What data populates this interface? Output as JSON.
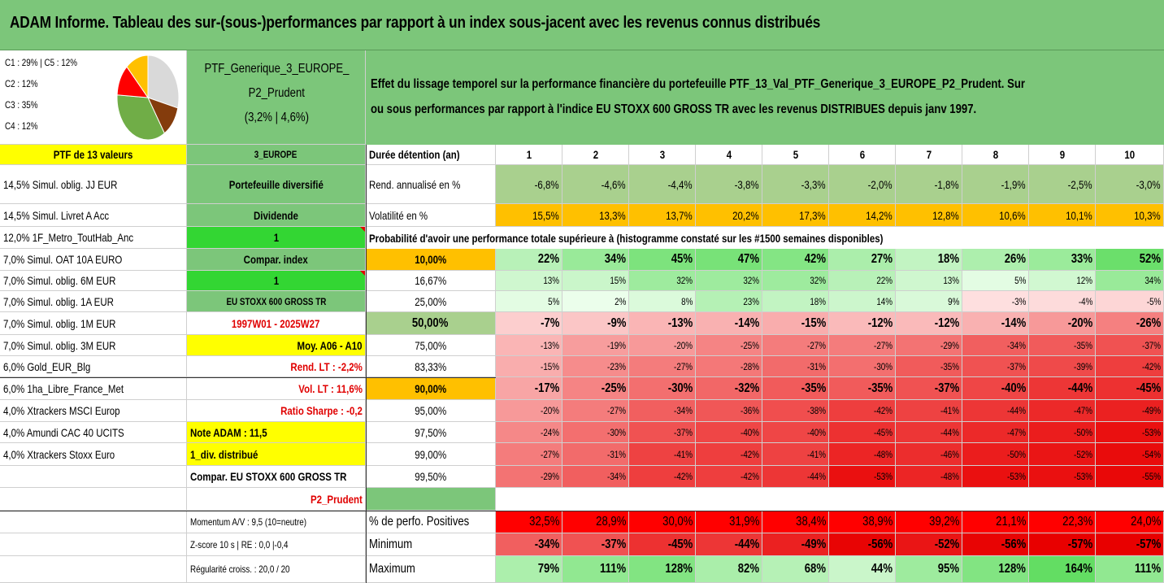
{
  "title": "ADAM Informe. Tableau des sur-(sous-)performances par rapport à un index sous-jacent avec les revenus connus distribués",
  "composition_lines": [
    "C1 : 29% | C5 : 12%",
    "C2 : 12%",
    "C3 : 35%",
    "C4 : 12%"
  ],
  "pie": {
    "slices": [
      {
        "name": "C1",
        "value": 29,
        "color": "#d9d9d9"
      },
      {
        "name": "C2",
        "value": 12,
        "color": "#843c0c"
      },
      {
        "name": "C3",
        "value": 35,
        "color": "#70ad47"
      },
      {
        "name": "C4",
        "value": 12,
        "color": "#ff0000"
      },
      {
        "name": "C5",
        "value": 12,
        "color": "#ffc000"
      }
    ]
  },
  "portfolio": {
    "name_line1": "PTF_Generique_3_EUROPE_",
    "name_line2": "P2_Prudent",
    "name_line3": "(3,2% | 4,6%)"
  },
  "description": {
    "line1": "Effet du lissage temporel sur la performance financière du portefeuille PTF_13_Val_PTF_Generique_3_EUROPE_P2_Prudent. Sur",
    "line2": "ou sous performances par rapport à l'indice EU STOXX 600 GROSS TR avec les revenus DISTRIBUES depuis janv 1997."
  },
  "holdings_header": "PTF de 13 valeurs",
  "holdings": [
    "14,5% Simul. oblig. JJ EUR",
    "14,5% Simul. Livret A Acc",
    "12,0% 1F_Metro_ToutHab_Anc",
    "7,0% Simul. OAT 10A EURO",
    "7,0% Simul. oblig. 6M EUR",
    "7,0% Simul. oblig. 1A EUR",
    "7,0% Simul. oblig. 1M EUR",
    "7,0% Simul. oblig. 3M EUR",
    "6,0% Gold_EUR_Blg",
    "6,0% 1ha_Libre_France_Met",
    "4,0% Xtrackers MSCI Europ",
    "4,0% Amundi CAC 40 UCITS",
    "4,0% Xtrackers Stoxx Euro"
  ],
  "info": {
    "zone": "3_EUROPE",
    "type": "Portefeuille diversifié",
    "dividend_label": "Dividende",
    "dividend_value": "1",
    "compar_label": "Compar. index",
    "compar_value": "1",
    "index_name": "EU STOXX 600 GROSS TR",
    "period": "1997W01 - 2025W27",
    "moy": "Moy. A06 - A10",
    "rend_lt": "Rend. LT : -2,2%",
    "vol_lt": "Vol. LT : 11,6%",
    "sharpe": "Ratio Sharpe : -0,2",
    "note": "Note ADAM : 11,5",
    "div_distrib": "1_div. distribué",
    "compar_full": "Compar. EU STOXX 600 GROSS TR",
    "profile": "P2_Prudent",
    "momentum": "Momentum A/V : 9,5 (10=neutre)",
    "zscore": "Z-score 10 s | RE : 0,0 |-0,4",
    "regularite": "Régularité croiss. : 20,0 / 20"
  },
  "table": {
    "duration_label": "Durée détention (an)",
    "years": [
      "1",
      "2",
      "3",
      "4",
      "5",
      "6",
      "7",
      "8",
      "9",
      "10"
    ],
    "rend_label": "Rend. annualisé en %",
    "rend": [
      "-6,8%",
      "-4,6%",
      "-4,4%",
      "-3,8%",
      "-3,3%",
      "-2,0%",
      "-1,8%",
      "-1,9%",
      "-2,5%",
      "-3,0%"
    ],
    "vol_label": "Volatilité en %",
    "vol": [
      "15,5%",
      "13,3%",
      "13,7%",
      "20,2%",
      "17,3%",
      "14,2%",
      "12,8%",
      "10,6%",
      "10,1%",
      "10,3%"
    ],
    "prob_title": "Probabilité d'avoir une performance totale supérieure à (histogramme constaté sur les #1500 semaines disponibles)",
    "prob_rows": [
      {
        "label": "10,00%",
        "values": [
          "22%",
          "34%",
          "45%",
          "47%",
          "42%",
          "27%",
          "18%",
          "26%",
          "33%",
          "52%"
        ]
      },
      {
        "label": "16,67%",
        "values": [
          "13%",
          "15%",
          "32%",
          "32%",
          "32%",
          "22%",
          "13%",
          "5%",
          "12%",
          "34%"
        ]
      },
      {
        "label": "25,00%",
        "values": [
          "5%",
          "2%",
          "8%",
          "23%",
          "18%",
          "14%",
          "9%",
          "-3%",
          "-4%",
          "-5%"
        ]
      },
      {
        "label": "50,00%",
        "values": [
          "-7%",
          "-9%",
          "-13%",
          "-14%",
          "-15%",
          "-12%",
          "-12%",
          "-14%",
          "-20%",
          "-26%"
        ]
      },
      {
        "label": "75,00%",
        "values": [
          "-13%",
          "-19%",
          "-20%",
          "-25%",
          "-27%",
          "-27%",
          "-29%",
          "-34%",
          "-35%",
          "-37%"
        ]
      },
      {
        "label": "83,33%",
        "values": [
          "-15%",
          "-23%",
          "-27%",
          "-28%",
          "-31%",
          "-30%",
          "-35%",
          "-37%",
          "-39%",
          "-42%"
        ]
      },
      {
        "label": "90,00%",
        "values": [
          "-17%",
          "-25%",
          "-30%",
          "-32%",
          "-35%",
          "-35%",
          "-37%",
          "-40%",
          "-44%",
          "-45%"
        ]
      },
      {
        "label": "95,00%",
        "values": [
          "-20%",
          "-27%",
          "-34%",
          "-36%",
          "-38%",
          "-42%",
          "-41%",
          "-44%",
          "-47%",
          "-49%"
        ]
      },
      {
        "label": "97,50%",
        "values": [
          "-24%",
          "-30%",
          "-37%",
          "-40%",
          "-40%",
          "-45%",
          "-44%",
          "-47%",
          "-50%",
          "-53%"
        ]
      },
      {
        "label": "99,00%",
        "values": [
          "-27%",
          "-31%",
          "-41%",
          "-42%",
          "-41%",
          "-48%",
          "-46%",
          "-50%",
          "-52%",
          "-54%"
        ]
      },
      {
        "label": "99,50%",
        "values": [
          "-29%",
          "-34%",
          "-42%",
          "-42%",
          "-44%",
          "-53%",
          "-48%",
          "-53%",
          "-53%",
          "-55%"
        ]
      }
    ],
    "positive_label": "% de perfo. Positives",
    "positive": [
      "32,5%",
      "28,9%",
      "30,0%",
      "31,9%",
      "38,4%",
      "38,9%",
      "39,2%",
      "21,1%",
      "22,3%",
      "24,0%"
    ],
    "min_label": "Minimum",
    "min": [
      "-34%",
      "-37%",
      "-45%",
      "-44%",
      "-49%",
      "-56%",
      "-52%",
      "-56%",
      "-57%",
      "-57%"
    ],
    "max_label": "Maximum",
    "max": [
      "79%",
      "111%",
      "128%",
      "82%",
      "68%",
      "44%",
      "95%",
      "128%",
      "164%",
      "111%"
    ]
  }
}
